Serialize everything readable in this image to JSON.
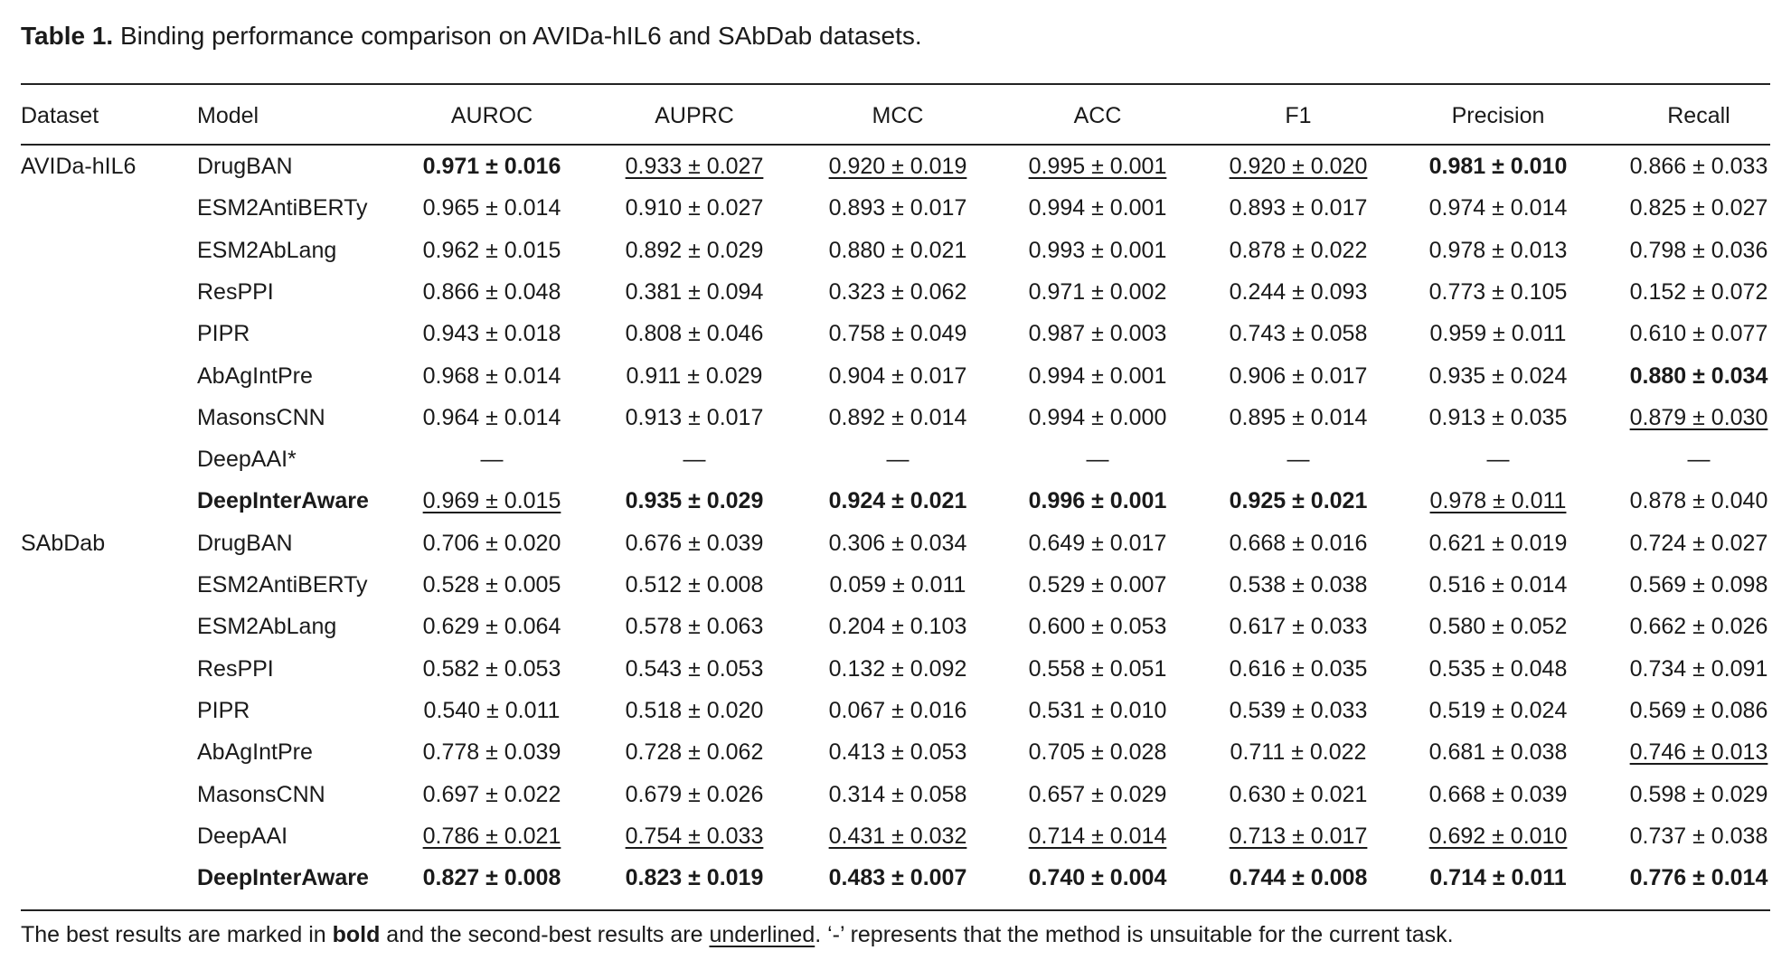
{
  "caption": {
    "label": "Table 1.",
    "text": "Binding performance comparison on AVIDa-hIL6 and SAbDab datasets."
  },
  "table": {
    "columns": [
      "Dataset",
      "Model",
      "AUROC",
      "AUPRC",
      "MCC",
      "ACC",
      "F1",
      "Precision",
      "Recall"
    ],
    "groups": [
      {
        "dataset": "AVIDa-hIL6",
        "rows": [
          {
            "model": "DrugBAN",
            "cells": [
              {
                "text": "0.971 ± 0.016",
                "emphasis": "bold"
              },
              {
                "text": "0.933 ± 0.027",
                "emphasis": "underline"
              },
              {
                "text": "0.920 ± 0.019",
                "emphasis": "underline"
              },
              {
                "text": "0.995 ± 0.001",
                "emphasis": "underline"
              },
              {
                "text": "0.920 ± 0.020",
                "emphasis": "underline"
              },
              {
                "text": "0.981 ± 0.010",
                "emphasis": "bold"
              },
              "0.866 ± 0.033"
            ]
          },
          {
            "model": "ESM2AntiBERTy",
            "cells": [
              "0.965 ± 0.014",
              "0.910 ± 0.027",
              "0.893 ± 0.017",
              "0.994 ± 0.001",
              "0.893 ± 0.017",
              "0.974 ± 0.014",
              "0.825 ± 0.027"
            ]
          },
          {
            "model": "ESM2AbLang",
            "cells": [
              "0.962 ± 0.015",
              "0.892 ± 0.029",
              "0.880 ± 0.021",
              "0.993 ± 0.001",
              "0.878 ± 0.022",
              "0.978 ± 0.013",
              "0.798 ± 0.036"
            ]
          },
          {
            "model": "ResPPI",
            "cells": [
              "0.866 ± 0.048",
              "0.381 ± 0.094",
              "0.323 ± 0.062",
              "0.971 ± 0.002",
              "0.244 ± 0.093",
              "0.773 ± 0.105",
              "0.152 ± 0.072"
            ]
          },
          {
            "model": "PIPR",
            "cells": [
              "0.943 ± 0.018",
              "0.808 ± 0.046",
              "0.758 ± 0.049",
              "0.987 ± 0.003",
              "0.743 ± 0.058",
              "0.959 ± 0.011",
              "0.610 ± 0.077"
            ]
          },
          {
            "model": "AbAgIntPre",
            "cells": [
              "0.968 ± 0.014",
              "0.911 ± 0.029",
              "0.904 ± 0.017",
              "0.994 ± 0.001",
              "0.906 ± 0.017",
              "0.935 ± 0.024",
              {
                "text": "0.880 ± 0.034",
                "emphasis": "bold"
              }
            ]
          },
          {
            "model": "MasonsCNN",
            "cells": [
              "0.964 ± 0.014",
              "0.913 ± 0.017",
              "0.892 ± 0.014",
              "0.994 ± 0.000",
              "0.895 ± 0.014",
              "0.913 ± 0.035",
              {
                "text": "0.879 ± 0.030",
                "emphasis": "underline"
              }
            ]
          },
          {
            "model": "DeepAAI*",
            "cells": [
              "—",
              "—",
              "—",
              "—",
              "—",
              "—",
              "—"
            ]
          },
          {
            "model": {
              "text": "DeepInterAware",
              "emphasis": "bold"
            },
            "cells": [
              {
                "text": "0.969 ± 0.015",
                "emphasis": "underline"
              },
              {
                "text": "0.935 ± 0.029",
                "emphasis": "bold"
              },
              {
                "text": "0.924 ± 0.021",
                "emphasis": "bold"
              },
              {
                "text": "0.996 ± 0.001",
                "emphasis": "bold"
              },
              {
                "text": "0.925 ± 0.021",
                "emphasis": "bold"
              },
              {
                "text": "0.978 ± 0.011",
                "emphasis": "underline"
              },
              "0.878 ± 0.040"
            ]
          }
        ]
      },
      {
        "dataset": "SAbDab",
        "rows": [
          {
            "model": "DrugBAN",
            "cells": [
              "0.706 ± 0.020",
              "0.676 ± 0.039",
              "0.306 ± 0.034",
              "0.649 ± 0.017",
              "0.668 ± 0.016",
              "0.621 ± 0.019",
              "0.724 ± 0.027"
            ]
          },
          {
            "model": "ESM2AntiBERTy",
            "cells": [
              "0.528 ± 0.005",
              "0.512 ± 0.008",
              "0.059 ± 0.011",
              "0.529 ± 0.007",
              "0.538 ± 0.038",
              "0.516 ± 0.014",
              "0.569 ± 0.098"
            ]
          },
          {
            "model": "ESM2AbLang",
            "cells": [
              "0.629 ± 0.064",
              "0.578 ± 0.063",
              "0.204 ± 0.103",
              "0.600 ± 0.053",
              "0.617 ± 0.033",
              "0.580 ± 0.052",
              "0.662 ± 0.026"
            ]
          },
          {
            "model": "ResPPI",
            "cells": [
              "0.582 ± 0.053",
              "0.543 ± 0.053",
              "0.132 ± 0.092",
              "0.558 ± 0.051",
              "0.616 ± 0.035",
              "0.535 ± 0.048",
              "0.734 ± 0.091"
            ]
          },
          {
            "model": "PIPR",
            "cells": [
              "0.540 ± 0.011",
              "0.518 ± 0.020",
              "0.067 ± 0.016",
              "0.531 ± 0.010",
              "0.539 ± 0.033",
              "0.519 ± 0.024",
              "0.569 ± 0.086"
            ]
          },
          {
            "model": "AbAgIntPre",
            "cells": [
              "0.778 ± 0.039",
              "0.728 ± 0.062",
              "0.413 ± 0.053",
              "0.705 ± 0.028",
              "0.711 ± 0.022",
              "0.681 ± 0.038",
              {
                "text": "0.746 ± 0.013",
                "emphasis": "underline"
              }
            ]
          },
          {
            "model": "MasonsCNN",
            "cells": [
              "0.697 ± 0.022",
              "0.679 ± 0.026",
              "0.314 ± 0.058",
              "0.657 ± 0.029",
              "0.630 ± 0.021",
              "0.668 ± 0.039",
              "0.598 ± 0.029"
            ]
          },
          {
            "model": "DeepAAI",
            "cells": [
              {
                "text": "0.786 ± 0.021",
                "emphasis": "underline"
              },
              {
                "text": "0.754 ± 0.033",
                "emphasis": "underline"
              },
              {
                "text": "0.431 ± 0.032",
                "emphasis": "underline"
              },
              {
                "text": "0.714 ± 0.014",
                "emphasis": "underline"
              },
              {
                "text": "0.713 ± 0.017",
                "emphasis": "underline"
              },
              {
                "text": "0.692 ± 0.010",
                "emphasis": "underline"
              },
              "0.737 ± 0.038"
            ]
          },
          {
            "model": {
              "text": "DeepInterAware",
              "emphasis": "bold"
            },
            "cells": [
              {
                "text": "0.827 ± 0.008",
                "emphasis": "bold"
              },
              {
                "text": "0.823 ± 0.019",
                "emphasis": "bold"
              },
              {
                "text": "0.483 ± 0.007",
                "emphasis": "bold"
              },
              {
                "text": "0.740 ± 0.004",
                "emphasis": "bold"
              },
              {
                "text": "0.744 ± 0.008",
                "emphasis": "bold"
              },
              {
                "text": "0.714 ± 0.011",
                "emphasis": "bold"
              },
              {
                "text": "0.776 ± 0.014",
                "emphasis": "bold"
              }
            ]
          }
        ]
      }
    ]
  },
  "note": [
    "The best results are marked in ",
    "bold",
    " and the second-best results are ",
    "underlined",
    ". ‘-’ represents that the method is unsuitable for the current task."
  ]
}
